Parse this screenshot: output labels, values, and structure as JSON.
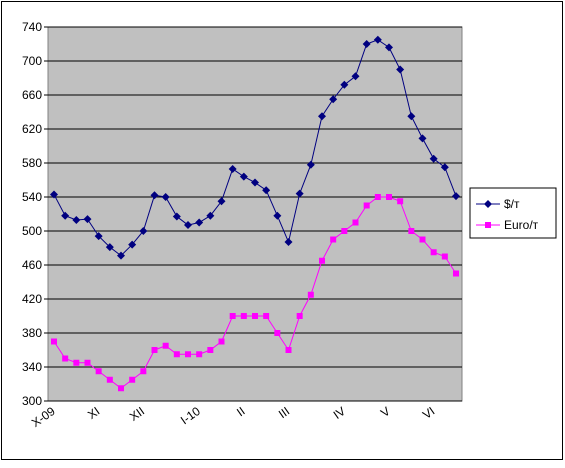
{
  "chart_data": {
    "type": "line",
    "categories": [
      "X-09",
      null,
      null,
      null,
      "XI",
      null,
      null,
      null,
      "XII",
      null,
      null,
      null,
      null,
      "I-10",
      null,
      null,
      null,
      "II",
      null,
      null,
      null,
      "III",
      null,
      null,
      null,
      null,
      "IV",
      null,
      null,
      null,
      "V",
      null,
      null,
      null,
      "VI",
      null,
      null
    ],
    "series": [
      {
        "name": "$/т",
        "color": "#000080",
        "marker": "diamond",
        "values": [
          543,
          518,
          513,
          514,
          494,
          481,
          471,
          484,
          500,
          542,
          540,
          517,
          507,
          510,
          518,
          535,
          573,
          564,
          557,
          548,
          518,
          487,
          544,
          578,
          635,
          655,
          672,
          682,
          720,
          725,
          716,
          690,
          635,
          609,
          585,
          575,
          541
        ]
      },
      {
        "name": "Euro/т",
        "color": "#ff00ff",
        "marker": "square",
        "values": [
          370,
          350,
          345,
          345,
          335,
          325,
          315,
          325,
          335,
          360,
          365,
          355,
          355,
          355,
          360,
          370,
          400,
          400,
          400,
          400,
          380,
          360,
          400,
          425,
          465,
          490,
          500,
          510,
          530,
          540,
          540,
          535,
          500,
          490,
          475,
          470,
          450
        ]
      }
    ],
    "ylim": [
      300,
      740
    ],
    "yticks": [
      300,
      340,
      380,
      420,
      460,
      500,
      540,
      580,
      620,
      660,
      700,
      740
    ],
    "grid": true,
    "legend": "right"
  }
}
